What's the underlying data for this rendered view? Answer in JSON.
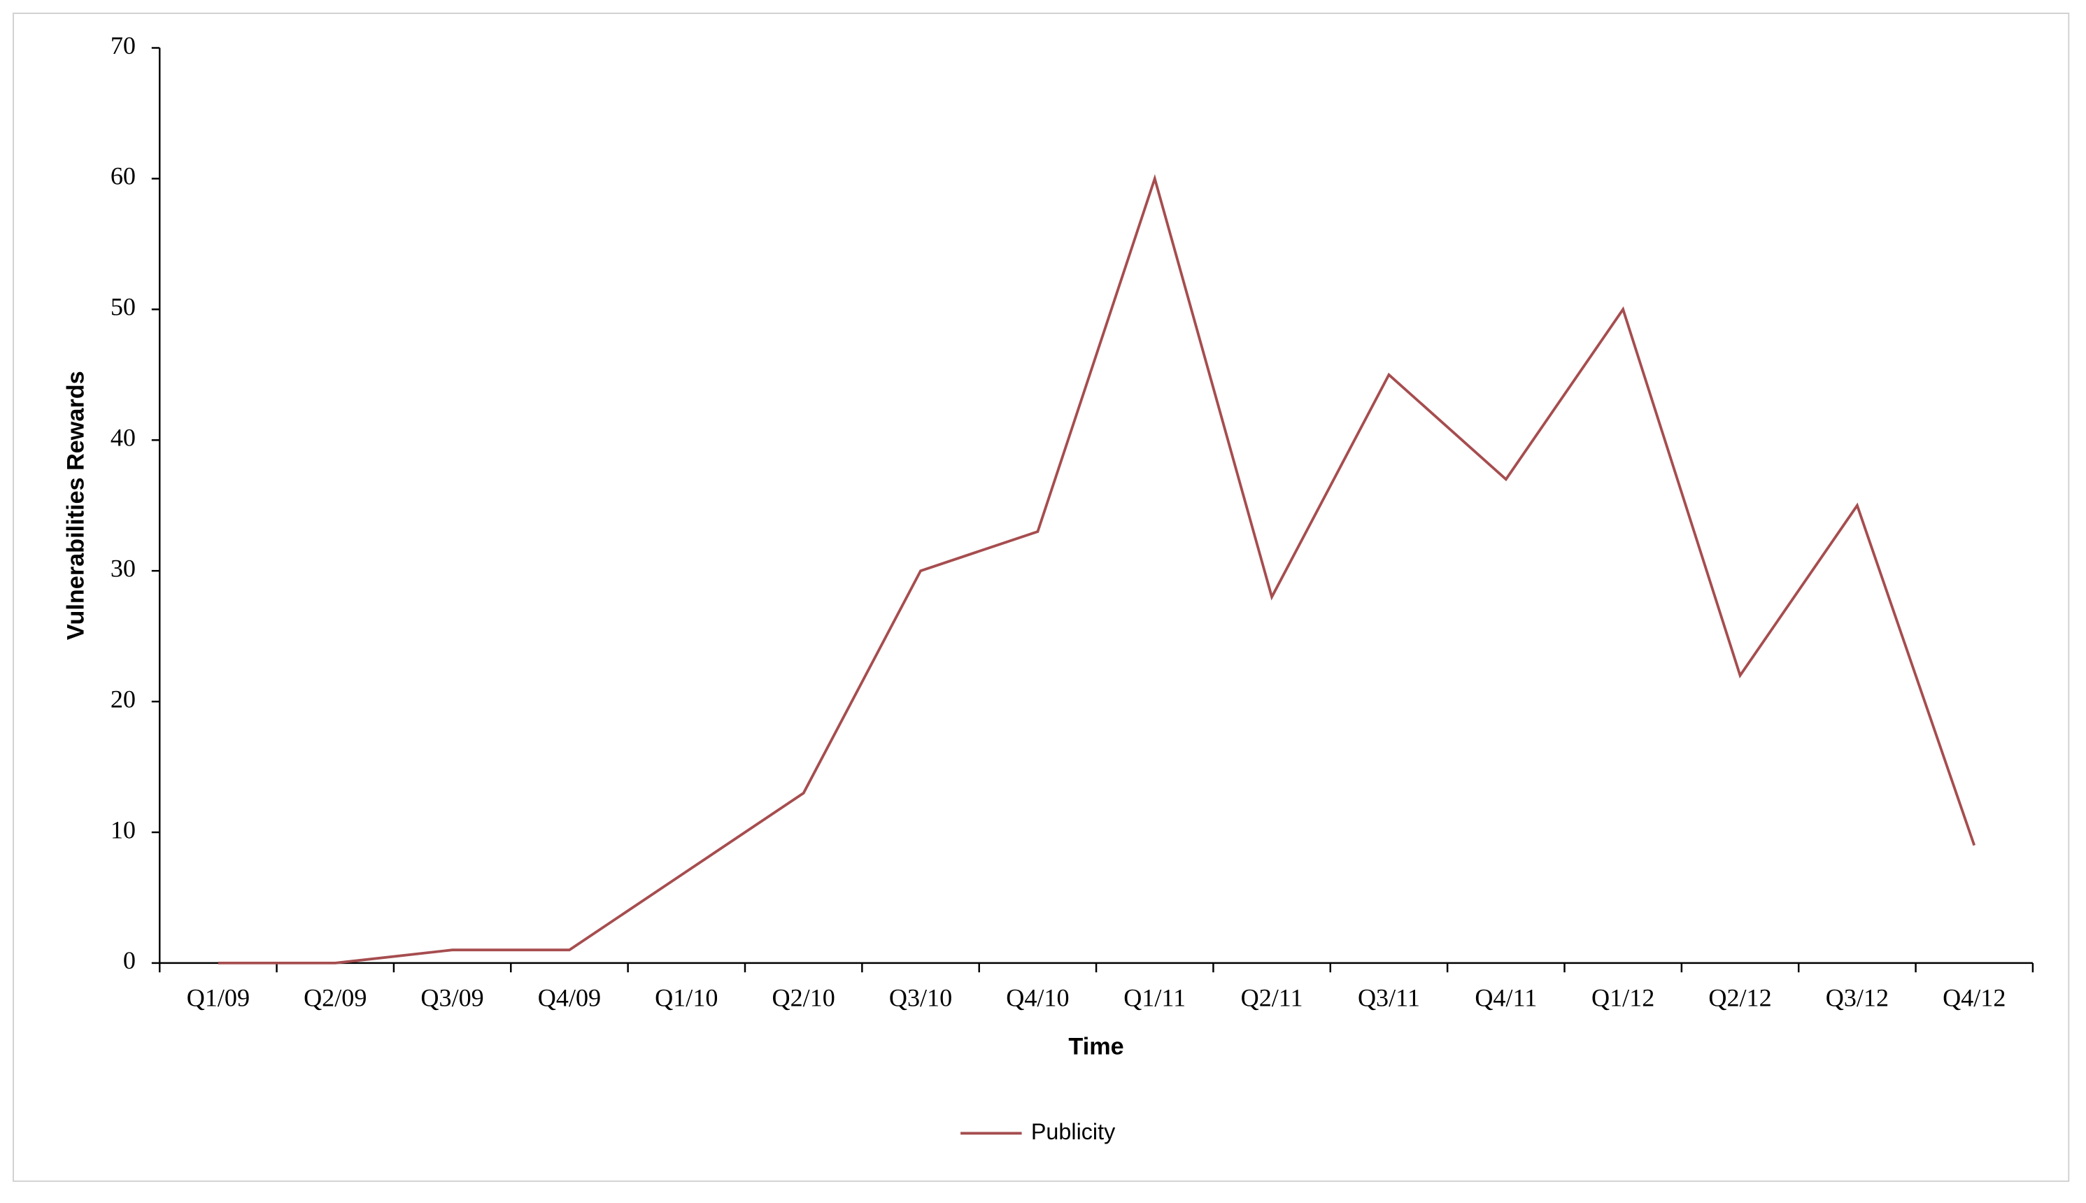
{
  "chart_data": {
    "type": "line",
    "x_label": "Time",
    "y_label": "Vulnerabilities Rewards",
    "categories": [
      "Q1/09",
      "Q2/09",
      "Q3/09",
      "Q4/09",
      "Q1/10",
      "Q2/10",
      "Q3/10",
      "Q4/10",
      "Q1/11",
      "Q2/11",
      "Q3/11",
      "Q4/11",
      "Q1/12",
      "Q2/12",
      "Q3/12",
      "Q4/12"
    ],
    "series": [
      {
        "name": "Publicity",
        "color": "#a64d4f",
        "values": [
          0,
          0,
          1,
          1,
          7,
          13,
          30,
          33,
          60,
          28,
          45,
          37,
          50,
          22,
          35,
          9
        ]
      }
    ],
    "ylim": [
      0,
      70
    ],
    "yticks": [
      0,
      10,
      20,
      30,
      40,
      50,
      60,
      70
    ],
    "legend": "bottom"
  }
}
